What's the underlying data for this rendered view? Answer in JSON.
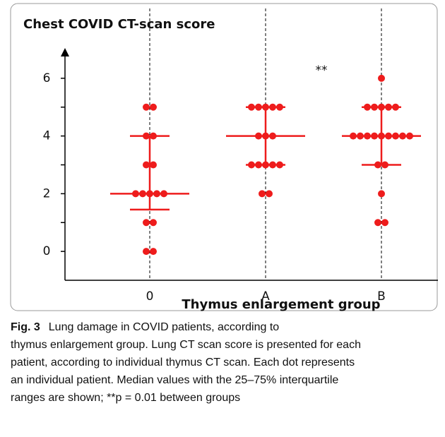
{
  "chart_data": {
    "type": "dot",
    "title": "Chest COVID CT-scan score",
    "xlabel": "Thymus enlargement group",
    "annotation": "**",
    "categories": [
      "0",
      "A",
      "B"
    ],
    "groups": [
      {
        "values": [
          5,
          5,
          4,
          4,
          3,
          3,
          2,
          2,
          2,
          2,
          2,
          1,
          1,
          0,
          0
        ],
        "median": 2,
        "q1": 1.45,
        "q3": 4
      },
      {
        "values": [
          5,
          5,
          5,
          5,
          5,
          4,
          4,
          4,
          3,
          3,
          3,
          3,
          3,
          2,
          2
        ],
        "median": 4,
        "q1": 3,
        "q3": 5
      },
      {
        "values": [
          6,
          5,
          5,
          5,
          5,
          5,
          4,
          4,
          4,
          4,
          4,
          4,
          4,
          4,
          4,
          3,
          3,
          2,
          1,
          1
        ],
        "median": 4,
        "q1": 3,
        "q3": 5
      }
    ],
    "color": "#ee1c1c",
    "ylim": [
      -1,
      7
    ],
    "yticks": [
      0,
      2,
      4,
      6
    ],
    "minor_yticks": [
      1,
      3,
      5
    ]
  },
  "caption": {
    "label": "Fig. 3",
    "lines": [
      "Lung damage in COVID patients, according to",
      "thymus enlargement group. Lung CT scan score is presented for each",
      "patient, according to individual thymus CT scan. Each dot represents",
      "an individual patient. Median values with the 25–75% interquartile",
      "ranges are shown; **p = 0.01 between groups"
    ]
  }
}
